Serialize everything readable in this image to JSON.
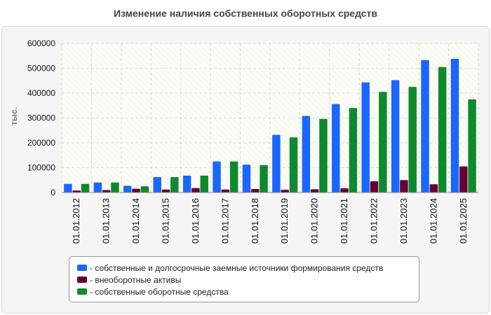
{
  "chart_data": {
    "type": "bar",
    "title": "Изменение наличия собственных оборотных средств",
    "ylabel": "тыс.",
    "xlabel": "",
    "ylim": [
      0,
      600000
    ],
    "yticks": [
      0,
      100000,
      200000,
      300000,
      400000,
      500000,
      600000
    ],
    "grid": true,
    "legend_position": "bottom",
    "categories": [
      "01.01.2012",
      "01.01.2013",
      "01.01.2014",
      "01.01.2015",
      "01.01.2016",
      "01.01.2017",
      "01.01.2018",
      "01.01.2019",
      "01.01.2020",
      "01.01.2021",
      "01.01.2022",
      "01.01.2023",
      "01.01.2024",
      "01.01.2025"
    ],
    "series": [
      {
        "name": "собственные и долгосрочные заемные источники формирования средств",
        "color": "#1a66ff",
        "values": [
          35000,
          40000,
          27000,
          62000,
          68000,
          125000,
          112000,
          232000,
          308000,
          356000,
          443000,
          452000,
          533000,
          538000
        ]
      },
      {
        "name": "внеоборотные активы",
        "color": "#660033",
        "values": [
          8000,
          10000,
          15000,
          12000,
          18000,
          12000,
          14000,
          11000,
          13000,
          17000,
          45000,
          50000,
          33000,
          105000
        ]
      },
      {
        "name": "собственные оборотные средства",
        "color": "#0d8a2e",
        "values": [
          35000,
          40000,
          25000,
          62000,
          68000,
          125000,
          110000,
          222000,
          296000,
          340000,
          405000,
          425000,
          505000,
          375000
        ]
      }
    ]
  }
}
